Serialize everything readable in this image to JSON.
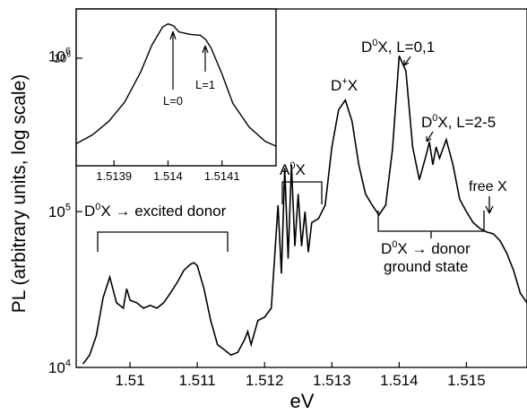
{
  "chart_data": [
    {
      "type": "line",
      "xlabel": "eV",
      "ylabel": "PL (arbitrary units, log scale)",
      "y_scale": "log",
      "xlim": [
        1.5092,
        1.5159
      ],
      "ylim": [
        10000,
        2000000
      ],
      "x_ticks": [
        {
          "value": 1.51,
          "label": "1.51"
        },
        {
          "value": 1.511,
          "label": "1.511"
        },
        {
          "value": 1.512,
          "label": "1.512"
        },
        {
          "value": 1.513,
          "label": "1.513"
        },
        {
          "value": 1.514,
          "label": "1.514"
        },
        {
          "value": 1.515,
          "label": "1.515"
        }
      ],
      "y_ticks": [
        {
          "value": 10000,
          "base": "10",
          "exp": "4"
        },
        {
          "value": 100000,
          "base": "10",
          "exp": "5"
        },
        {
          "value": 1000000,
          "base": "10",
          "exp": "6"
        }
      ],
      "grid": false,
      "series": [
        {
          "x": [
            1.5093,
            1.5094,
            1.5095,
            1.5096,
            1.5097,
            1.5098,
            1.5099,
            1.50995,
            1.51,
            1.5101,
            1.5102,
            1.5103,
            1.5104,
            1.5105,
            1.5106,
            1.5107,
            1.5108,
            1.5109,
            1.51095,
            1.511,
            1.5111,
            1.5112,
            1.5113,
            1.5114,
            1.5115,
            1.5116,
            1.5117,
            1.51175,
            1.5118,
            1.5119,
            1.512,
            1.5121,
            1.5122,
            1.51225,
            1.5123,
            1.51235,
            1.5124,
            1.51245,
            1.5125,
            1.51255,
            1.5126,
            1.51265,
            1.5127,
            1.5128,
            1.5129,
            1.513,
            1.5131,
            1.5132,
            1.5133,
            1.5134,
            1.5135,
            1.5136,
            1.5137,
            1.5138,
            1.5139,
            1.514,
            1.5141,
            1.5142,
            1.5143,
            1.5144,
            1.51445,
            1.5145,
            1.51455,
            1.5146,
            1.5147,
            1.5148,
            1.5149,
            1.515,
            1.5151,
            1.5152,
            1.5153,
            1.5154,
            1.5155,
            1.5156,
            1.5157,
            1.5158,
            1.5159
          ],
          "y": [
            10500,
            12000,
            16000,
            28000,
            38000,
            26000,
            24000,
            32000,
            27000,
            26000,
            24000,
            25000,
            24000,
            26000,
            30000,
            35000,
            42000,
            46000,
            47000,
            45000,
            32000,
            20000,
            14000,
            13000,
            12000,
            12500,
            15000,
            17000,
            14000,
            20000,
            21000,
            24000,
            110000,
            40000,
            190000,
            50000,
            200000,
            60000,
            130000,
            60000,
            100000,
            55000,
            85000,
            90000,
            110000,
            260000,
            450000,
            520000,
            380000,
            200000,
            130000,
            110000,
            95000,
            110000,
            250000,
            1000000,
            800000,
            260000,
            160000,
            230000,
            280000,
            200000,
            260000,
            220000,
            290000,
            200000,
            120000,
            100000,
            85000,
            78000,
            74000,
            72000,
            65000,
            54000,
            42000,
            30000,
            26000
          ]
        }
      ],
      "annotations": [
        {
          "base": "D",
          "sup": "0",
          "rest": "X → excited donor"
        },
        {
          "base": "A",
          "sup": "0",
          "rest": "X"
        },
        {
          "base": "D",
          "sup": "+",
          "rest": "X"
        },
        {
          "base": "D",
          "sup": "0",
          "rest": "X, L=0,1"
        },
        {
          "base": "D",
          "sup": "0",
          "rest": "X, L=2-5"
        },
        {
          "base": "D",
          "sup": "0",
          "rest": "X → donor"
        },
        {
          "text": "ground state"
        },
        {
          "text": "free X"
        }
      ]
    },
    {
      "type": "line",
      "inset": true,
      "xlabel": "",
      "ylabel": "",
      "y_scale": "log",
      "xlim": [
        1.51383,
        1.5142
      ],
      "ylim": [
        220000,
        2000000
      ],
      "x_ticks": [
        {
          "value": 1.5139,
          "label": "1.5139"
        },
        {
          "value": 1.514,
          "label": "1.514"
        },
        {
          "value": 1.5141,
          "label": "1.5141"
        }
      ],
      "y_ticks": [
        {
          "value": 1000000,
          "base": "10",
          "exp": "6"
        }
      ],
      "series": [
        {
          "x": [
            1.51383,
            1.51386,
            1.51389,
            1.51392,
            1.51395,
            1.51397,
            1.51399,
            1.514,
            1.51401,
            1.51402,
            1.51404,
            1.51406,
            1.51407,
            1.51408,
            1.5141,
            1.51412,
            1.51415,
            1.51418,
            1.5142
          ],
          "y": [
            300000,
            340000,
            410000,
            540000,
            830000,
            1200000,
            1550000,
            1620000,
            1580000,
            1450000,
            1400000,
            1380000,
            1300000,
            1150000,
            800000,
            530000,
            380000,
            310000,
            290000
          ]
        }
      ],
      "annotations": [
        {
          "text": "L=0",
          "x": 1.514
        },
        {
          "text": "L=1",
          "x": 1.51406
        }
      ]
    }
  ]
}
